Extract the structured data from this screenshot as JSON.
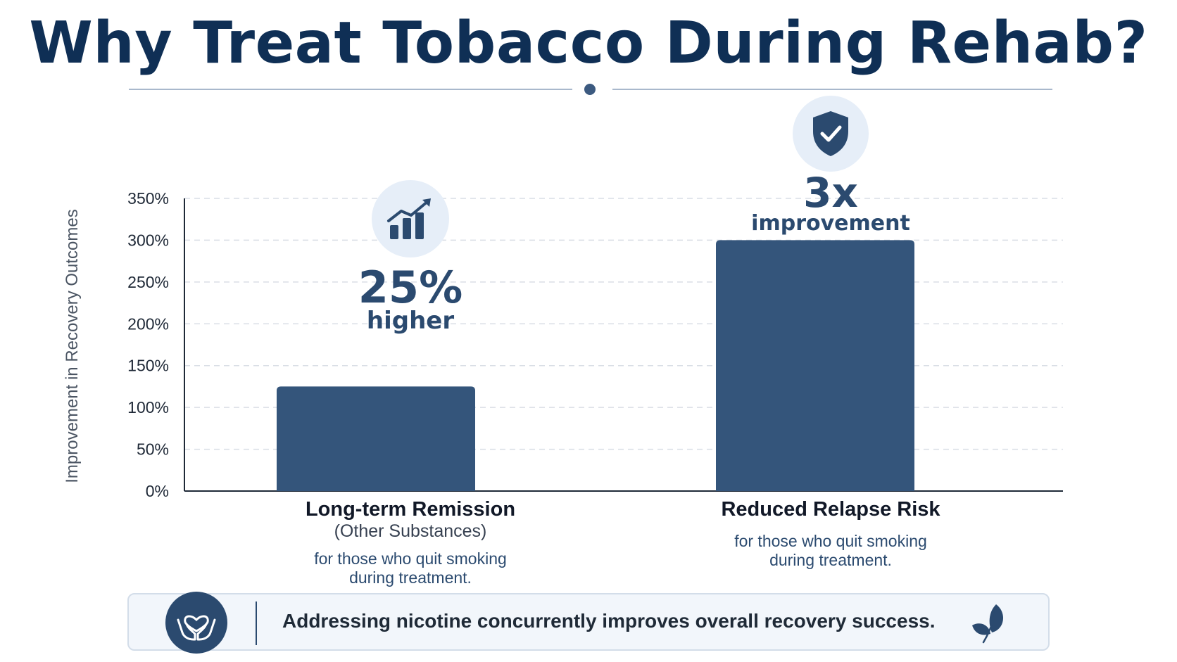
{
  "title": "Why Treat Tobacco During Rehab?",
  "colors": {
    "title": "#0f2f55",
    "bar": "#34557b",
    "accent": "#2b4a6f",
    "icon_bg": "#e6eef8",
    "grid": "#d9dee5"
  },
  "chart_data": {
    "type": "bar",
    "ylabel": "Improvement in Recovery Outcomes",
    "ylim": [
      0,
      350
    ],
    "yticks": [
      0,
      50,
      100,
      150,
      200,
      250,
      300,
      350
    ],
    "ytick_labels": [
      "0%",
      "50%",
      "100%",
      "150%",
      "200%",
      "250%",
      "300%",
      "350%"
    ],
    "grid": "horizontal-dashed",
    "categories": [
      "Long-term Remission",
      "Reduced Relapse Risk"
    ],
    "values": [
      125,
      300
    ],
    "unit": "%"
  },
  "bars": [
    {
      "title": "Long-term Remission",
      "subtitle": "(Other Substances)",
      "note_line1": "for those who quit smoking",
      "note_line2": "during treatment.",
      "callout_value": "25%",
      "callout_unit": "higher",
      "icon": "chart-growth-icon"
    },
    {
      "title": "Reduced Relapse Risk",
      "subtitle": "",
      "note_line1": "for those who quit smoking",
      "note_line2": "during treatment.",
      "callout_value": "3x",
      "callout_unit": "improvement",
      "icon": "shield-check-icon"
    }
  ],
  "footer": {
    "text": "Addressing nicotine concurrently improves overall recovery success.",
    "icon": "hands-heart-icon",
    "leaf_icon": "leaf-icon"
  }
}
